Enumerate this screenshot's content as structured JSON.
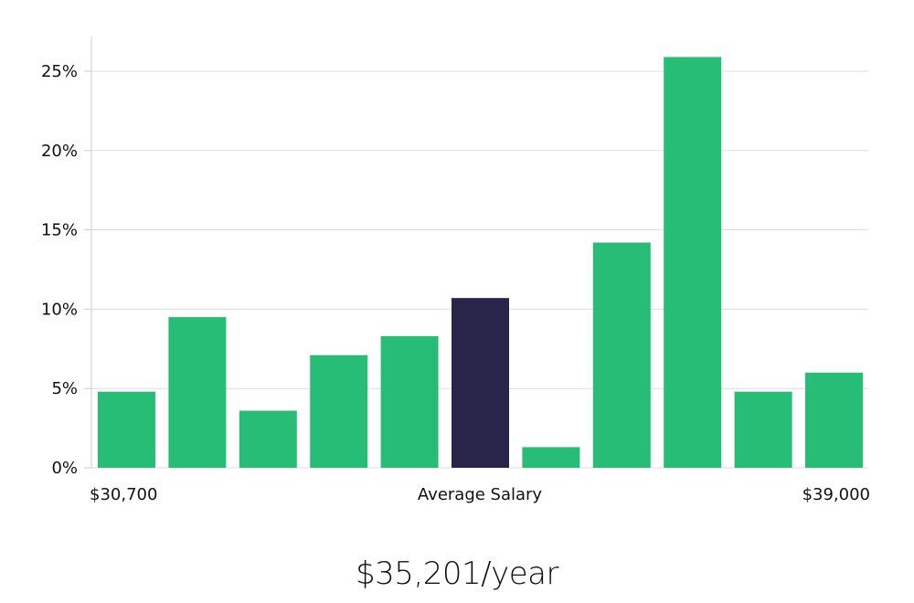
{
  "chart_data": {
    "type": "bar",
    "categories": [
      "",
      "",
      "",
      "",
      "",
      "",
      "",
      "",
      "",
      "",
      ""
    ],
    "values": [
      4.8,
      9.5,
      3.6,
      7.1,
      8.3,
      10.7,
      1.3,
      14.2,
      25.9,
      4.8,
      6.0
    ],
    "highlight_index": 5,
    "ylim": [
      0,
      25
    ],
    "yticks": [
      0,
      5,
      10,
      15,
      20,
      25
    ],
    "ytick_labels": [
      "0%",
      "5%",
      "10%",
      "15%",
      "20%",
      "25%"
    ],
    "grid": true,
    "x_left_label": "$30,700",
    "x_center_label": "Average Salary",
    "x_right_label": "$39,000",
    "colors": {
      "bar": "#27bd77",
      "highlight": "#29254a",
      "grid": "#dddddd",
      "axis": "#cccccc"
    }
  },
  "summary": {
    "salary_text": "$35,201/year"
  }
}
